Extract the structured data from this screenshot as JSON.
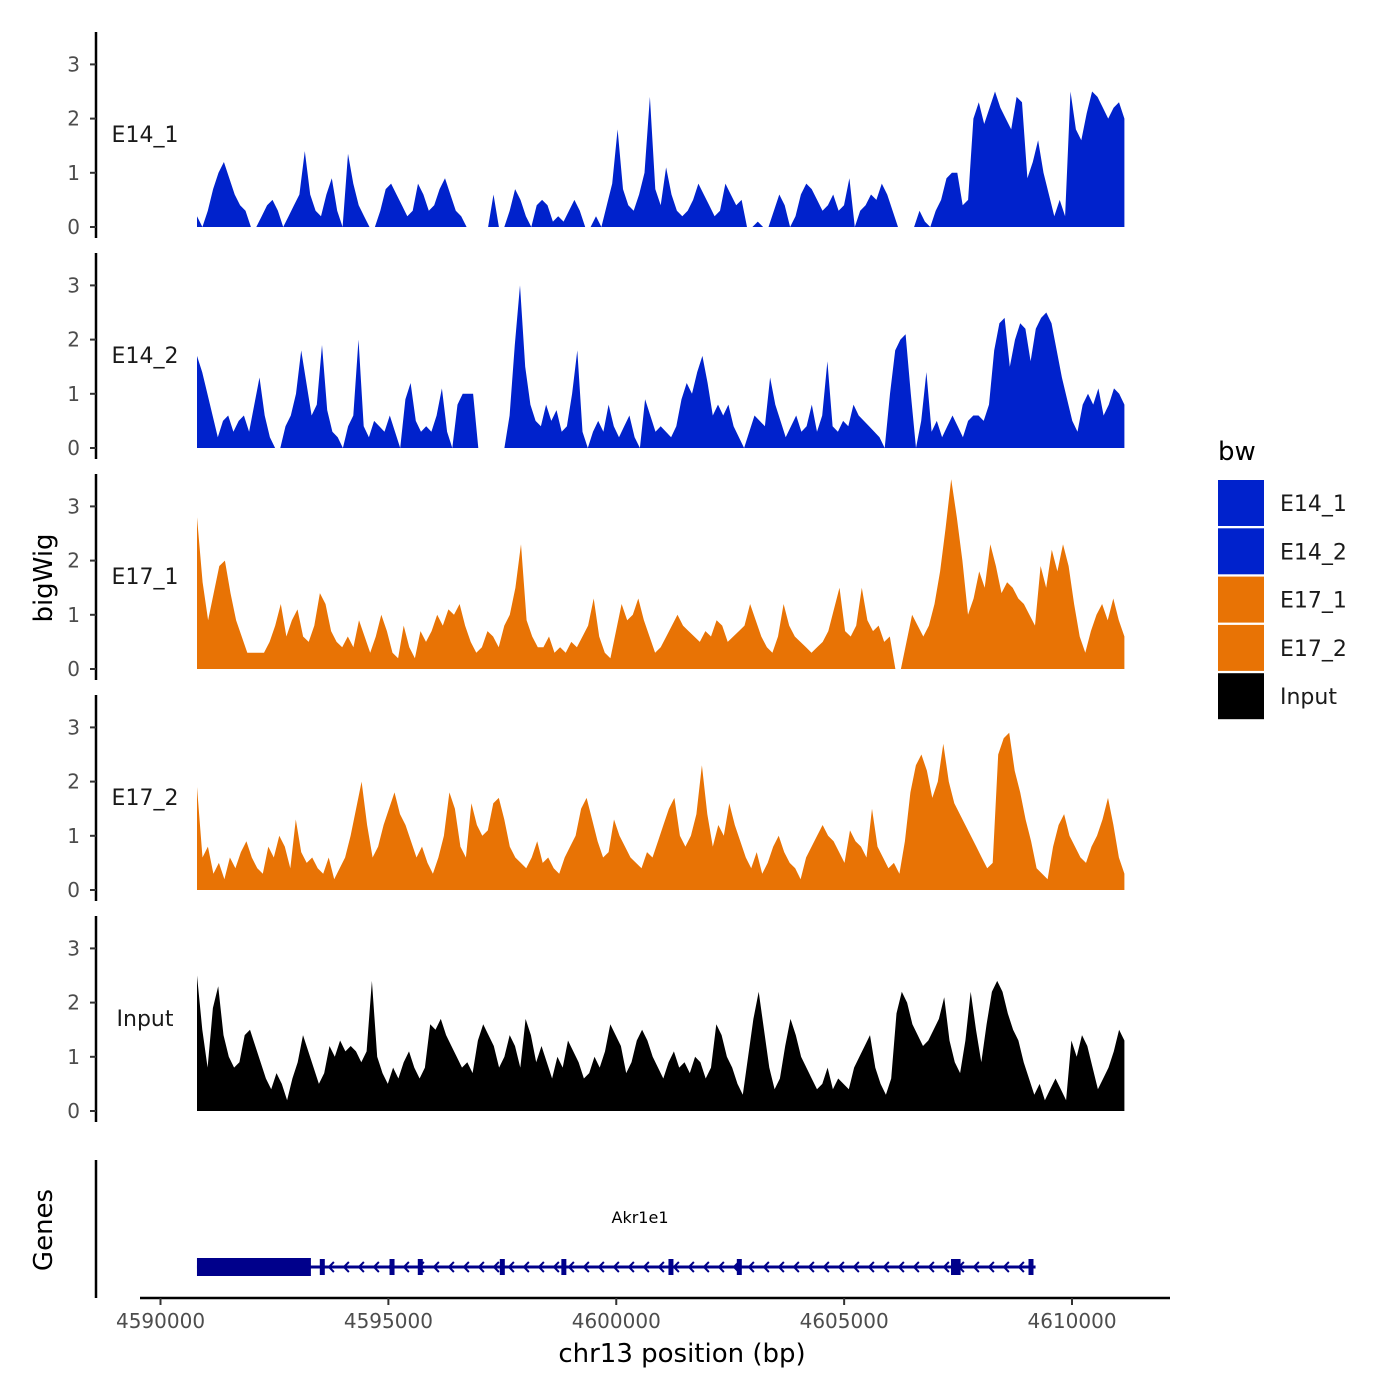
{
  "chart_data": {
    "type": "area",
    "ylabel": "bigWig",
    "xlabel": "chr13 position (bp)",
    "genes_label": "Genes",
    "legend_title": "bw",
    "y_ticks": [
      "0",
      "1",
      "2",
      "3"
    ],
    "ylim": [
      0,
      3.6
    ],
    "xlim": [
      4589550,
      4612150
    ],
    "x_ticks": [
      {
        "value": 4590000,
        "label": "4590000"
      },
      {
        "value": 4595000,
        "label": "4595000"
      },
      {
        "value": 4600000,
        "label": "4600000"
      },
      {
        "value": 4605000,
        "label": "4605000"
      },
      {
        "value": 4610000,
        "label": "4610000"
      }
    ],
    "x_start": 4590800,
    "x_end": 4611150,
    "colors": {
      "E14_1": "#0022CC",
      "E14_2": "#0022CC",
      "E17_1": "#E87305",
      "E17_2": "#E87305",
      "Input": "#000000"
    },
    "series": [
      {
        "name": "E14_1",
        "color": "#0022CC",
        "values": [
          0.2,
          0.0,
          0.3,
          0.7,
          1.0,
          1.2,
          0.9,
          0.6,
          0.4,
          0.3,
          0.0,
          0.0,
          0.2,
          0.4,
          0.5,
          0.3,
          0.0,
          0.2,
          0.4,
          0.6,
          1.4,
          0.6,
          0.3,
          0.2,
          0.6,
          0.9,
          0.3,
          0.0,
          1.35,
          0.8,
          0.4,
          0.2,
          0.0,
          0.0,
          0.3,
          0.7,
          0.8,
          0.6,
          0.4,
          0.2,
          0.3,
          0.8,
          0.6,
          0.3,
          0.4,
          0.7,
          0.9,
          0.6,
          0.3,
          0.2,
          0.0,
          0.0,
          0.0,
          0.0,
          0.0,
          0.6,
          0.0,
          0.0,
          0.3,
          0.7,
          0.5,
          0.2,
          0.0,
          0.4,
          0.5,
          0.4,
          0.1,
          0.2,
          0.1,
          0.3,
          0.5,
          0.3,
          0.0,
          0.0,
          0.2,
          0.0,
          0.4,
          0.8,
          1.8,
          0.7,
          0.4,
          0.3,
          0.6,
          1.0,
          2.4,
          0.7,
          0.4,
          1.1,
          0.6,
          0.3,
          0.2,
          0.3,
          0.5,
          0.8,
          0.6,
          0.4,
          0.2,
          0.3,
          0.8,
          0.6,
          0.4,
          0.5,
          0.0,
          0.0,
          0.1,
          0.0,
          0.0,
          0.3,
          0.6,
          0.4,
          0.0,
          0.2,
          0.6,
          0.8,
          0.7,
          0.5,
          0.3,
          0.4,
          0.6,
          0.3,
          0.4,
          0.9,
          0.0,
          0.3,
          0.4,
          0.6,
          0.5,
          0.8,
          0.6,
          0.3,
          0.0,
          0.0,
          0.0,
          0.0,
          0.3,
          0.1,
          0.0,
          0.3,
          0.5,
          0.9,
          1.0,
          1.0,
          0.4,
          0.5,
          2.0,
          2.3,
          1.9,
          2.2,
          2.5,
          2.2,
          2.0,
          1.8,
          2.4,
          2.3,
          0.9,
          1.2,
          1.6,
          1.0,
          0.6,
          0.2,
          0.5,
          0.2,
          2.5,
          1.8,
          1.6,
          2.1,
          2.5,
          2.4,
          2.2,
          2.0,
          2.2,
          2.3,
          2.0
        ]
      },
      {
        "name": "E14_2",
        "color": "#0022CC",
        "values": [
          1.7,
          1.4,
          1.0,
          0.6,
          0.2,
          0.5,
          0.6,
          0.3,
          0.5,
          0.6,
          0.3,
          0.8,
          1.3,
          0.6,
          0.2,
          0.0,
          0.0,
          0.4,
          0.6,
          1.0,
          1.8,
          1.2,
          0.6,
          0.8,
          1.9,
          0.7,
          0.3,
          0.2,
          0.0,
          0.4,
          0.6,
          2.0,
          0.4,
          0.2,
          0.5,
          0.4,
          0.3,
          0.6,
          0.3,
          0.0,
          0.9,
          1.2,
          0.5,
          0.3,
          0.4,
          0.3,
          0.6,
          1.1,
          0.3,
          0.0,
          0.8,
          1.0,
          1.0,
          1.0,
          0.0,
          0.0,
          0.0,
          0.0,
          0.0,
          0.0,
          0.6,
          1.9,
          3.0,
          1.5,
          0.8,
          0.5,
          0.4,
          0.8,
          0.5,
          0.7,
          0.3,
          0.4,
          1.0,
          1.8,
          0.3,
          0.0,
          0.3,
          0.5,
          0.3,
          0.8,
          0.4,
          0.2,
          0.4,
          0.6,
          0.2,
          0.0,
          0.9,
          0.6,
          0.3,
          0.4,
          0.3,
          0.2,
          0.4,
          0.9,
          1.2,
          1.0,
          1.4,
          1.7,
          1.2,
          0.6,
          0.8,
          0.6,
          0.8,
          0.4,
          0.2,
          0.0,
          0.3,
          0.6,
          0.5,
          0.4,
          1.3,
          0.8,
          0.5,
          0.2,
          0.4,
          0.6,
          0.3,
          0.4,
          0.8,
          0.3,
          0.6,
          1.6,
          0.4,
          0.3,
          0.5,
          0.4,
          0.8,
          0.6,
          0.5,
          0.4,
          0.3,
          0.2,
          0.0,
          1.0,
          1.8,
          2.0,
          2.1,
          1.0,
          0.0,
          0.5,
          1.4,
          0.3,
          0.5,
          0.2,
          0.4,
          0.6,
          0.4,
          0.2,
          0.5,
          0.6,
          0.6,
          0.5,
          0.8,
          1.8,
          2.3,
          2.4,
          1.5,
          2.0,
          2.3,
          2.2,
          1.6,
          2.2,
          2.4,
          2.5,
          2.3,
          1.8,
          1.3,
          0.9,
          0.5,
          0.3,
          0.8,
          1.0,
          0.8,
          1.1,
          0.6,
          0.8,
          1.1,
          1.0,
          0.8
        ]
      },
      {
        "name": "E17_1",
        "color": "#E87305",
        "values": [
          2.8,
          1.6,
          0.9,
          1.4,
          1.9,
          2.0,
          1.4,
          0.9,
          0.6,
          0.3,
          0.3,
          0.3,
          0.3,
          0.5,
          0.8,
          1.2,
          0.6,
          0.9,
          1.1,
          0.6,
          0.5,
          0.8,
          1.4,
          1.2,
          0.7,
          0.5,
          0.4,
          0.6,
          0.4,
          0.9,
          0.6,
          0.3,
          0.6,
          1.0,
          0.7,
          0.3,
          0.2,
          0.8,
          0.4,
          0.2,
          0.7,
          0.5,
          0.7,
          1.0,
          0.8,
          1.1,
          1.0,
          1.2,
          0.8,
          0.5,
          0.3,
          0.4,
          0.7,
          0.6,
          0.4,
          0.8,
          1.0,
          1.5,
          2.3,
          0.9,
          0.6,
          0.4,
          0.4,
          0.6,
          0.3,
          0.4,
          0.3,
          0.5,
          0.4,
          0.6,
          0.8,
          1.3,
          0.6,
          0.3,
          0.2,
          0.7,
          1.2,
          0.9,
          1.0,
          1.3,
          0.9,
          0.6,
          0.3,
          0.4,
          0.6,
          0.8,
          1.0,
          0.8,
          0.7,
          0.6,
          0.5,
          0.7,
          0.6,
          0.9,
          0.8,
          0.5,
          0.6,
          0.7,
          0.8,
          1.2,
          0.9,
          0.6,
          0.4,
          0.3,
          0.6,
          1.2,
          0.8,
          0.6,
          0.5,
          0.4,
          0.3,
          0.4,
          0.5,
          0.7,
          1.1,
          1.5,
          0.7,
          0.6,
          0.8,
          1.5,
          0.9,
          0.7,
          0.8,
          0.5,
          0.6,
          0.0,
          0.0,
          0.5,
          1.0,
          0.8,
          0.6,
          0.8,
          1.2,
          1.8,
          2.6,
          3.5,
          2.8,
          2.0,
          1.0,
          1.3,
          1.8,
          1.5,
          2.3,
          1.9,
          1.4,
          1.6,
          1.5,
          1.3,
          1.2,
          1.0,
          0.8,
          1.9,
          1.5,
          2.2,
          1.8,
          2.3,
          1.9,
          1.2,
          0.6,
          0.3,
          0.7,
          1.0,
          1.2,
          0.9,
          1.3,
          0.9,
          0.6
        ]
      },
      {
        "name": "E17_2",
        "color": "#E87305",
        "values": [
          1.9,
          0.6,
          0.8,
          0.3,
          0.5,
          0.2,
          0.6,
          0.4,
          0.7,
          0.9,
          0.6,
          0.4,
          0.3,
          0.8,
          0.6,
          1.0,
          0.8,
          0.4,
          1.3,
          0.7,
          0.5,
          0.6,
          0.4,
          0.3,
          0.6,
          0.2,
          0.4,
          0.6,
          1.0,
          1.5,
          2.0,
          1.2,
          0.6,
          0.8,
          1.2,
          1.5,
          1.8,
          1.4,
          1.2,
          0.9,
          0.6,
          0.8,
          0.5,
          0.3,
          0.6,
          1.0,
          1.8,
          1.5,
          0.8,
          0.6,
          1.6,
          1.2,
          1.0,
          1.1,
          1.6,
          1.7,
          1.3,
          0.8,
          0.6,
          0.5,
          0.4,
          0.6,
          0.9,
          0.5,
          0.6,
          0.4,
          0.3,
          0.6,
          0.8,
          1.0,
          1.5,
          1.7,
          1.3,
          0.9,
          0.6,
          0.7,
          1.3,
          1.0,
          0.8,
          0.6,
          0.5,
          0.4,
          0.7,
          0.6,
          0.9,
          1.2,
          1.5,
          1.7,
          1.0,
          0.8,
          1.0,
          1.4,
          2.3,
          1.4,
          0.8,
          1.2,
          1.0,
          1.6,
          1.2,
          0.9,
          0.6,
          0.4,
          0.7,
          0.3,
          0.5,
          0.8,
          1.0,
          0.7,
          0.5,
          0.4,
          0.2,
          0.6,
          0.8,
          1.0,
          1.2,
          1.0,
          0.9,
          0.7,
          0.5,
          1.1,
          0.9,
          0.8,
          0.6,
          1.5,
          0.8,
          0.6,
          0.4,
          0.5,
          0.3,
          0.9,
          1.8,
          2.3,
          2.5,
          2.2,
          1.7,
          2.0,
          2.7,
          2.0,
          1.6,
          1.4,
          1.2,
          1.0,
          0.8,
          0.6,
          0.4,
          0.5,
          2.5,
          2.8,
          2.9,
          2.2,
          1.8,
          1.3,
          0.9,
          0.4,
          0.3,
          0.2,
          0.8,
          1.2,
          1.4,
          1.0,
          0.8,
          0.6,
          0.5,
          0.8,
          1.0,
          1.3,
          1.7,
          1.2,
          0.6,
          0.3
        ]
      },
      {
        "name": "Input",
        "color": "#000000",
        "values": [
          2.5,
          1.5,
          0.8,
          1.9,
          2.3,
          1.4,
          1.0,
          0.8,
          0.9,
          1.4,
          1.5,
          1.2,
          0.9,
          0.6,
          0.4,
          0.7,
          0.5,
          0.2,
          0.6,
          0.9,
          1.4,
          1.1,
          0.8,
          0.5,
          0.7,
          1.2,
          1.0,
          1.3,
          1.1,
          1.2,
          1.1,
          0.9,
          1.1,
          2.4,
          1.0,
          0.7,
          0.5,
          0.8,
          0.6,
          0.9,
          1.1,
          0.8,
          0.6,
          0.8,
          1.6,
          1.5,
          1.7,
          1.4,
          1.2,
          1.0,
          0.8,
          0.9,
          0.7,
          1.3,
          1.6,
          1.4,
          1.2,
          0.8,
          1.0,
          1.4,
          1.2,
          0.8,
          1.7,
          1.4,
          0.9,
          1.2,
          0.9,
          0.6,
          1.0,
          0.8,
          1.3,
          1.1,
          0.9,
          0.6,
          0.7,
          1.0,
          0.8,
          1.1,
          1.6,
          1.4,
          1.2,
          0.7,
          0.9,
          1.3,
          1.5,
          1.3,
          1.0,
          0.8,
          0.6,
          0.9,
          1.1,
          0.8,
          0.9,
          0.7,
          1.0,
          0.9,
          0.6,
          0.8,
          1.6,
          1.4,
          1.0,
          0.8,
          0.5,
          0.3,
          1.0,
          1.7,
          2.2,
          1.5,
          0.8,
          0.4,
          0.6,
          1.2,
          1.7,
          1.4,
          1.0,
          0.8,
          0.6,
          0.4,
          0.5,
          0.8,
          0.4,
          0.6,
          0.5,
          0.4,
          0.8,
          1.0,
          1.2,
          1.4,
          0.8,
          0.5,
          0.3,
          0.6,
          1.8,
          2.2,
          2.0,
          1.6,
          1.4,
          1.2,
          1.3,
          1.5,
          1.7,
          2.1,
          1.3,
          0.9,
          0.7,
          1.3,
          2.2,
          1.5,
          0.9,
          1.6,
          2.2,
          2.4,
          2.2,
          1.8,
          1.5,
          1.3,
          0.9,
          0.6,
          0.3,
          0.5,
          0.2,
          0.4,
          0.6,
          0.4,
          0.2,
          1.3,
          1.0,
          1.4,
          1.2,
          0.8,
          0.4,
          0.6,
          0.8,
          1.1,
          1.5,
          1.3
        ]
      }
    ],
    "gene": {
      "name": "Akr1e1",
      "start": 4590800,
      "end": 4609200,
      "strand": "-",
      "color": "#00008B",
      "thick_blocks": [
        [
          4590800,
          4593300
        ]
      ],
      "exons": [
        4593550,
        4595080,
        4595700,
        4597500,
        4598850,
        4601200,
        4602700,
        4607400,
        4607500,
        4609100
      ]
    }
  }
}
